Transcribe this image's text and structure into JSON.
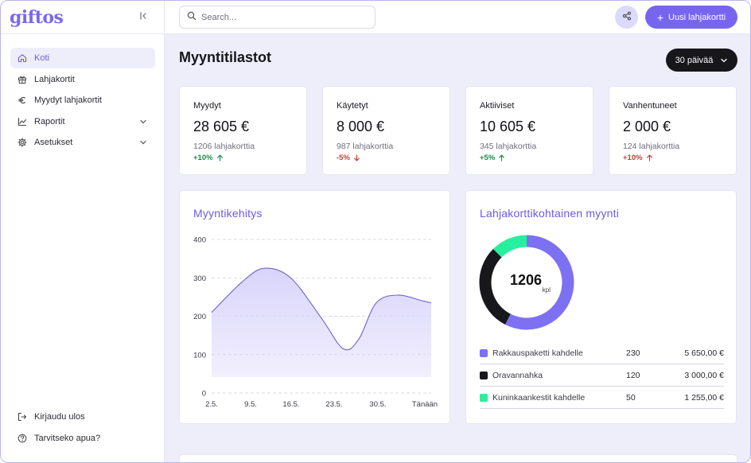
{
  "app": {
    "logo": "giftos"
  },
  "sidebar": {
    "items": [
      {
        "label": "Koti",
        "icon": "home-icon",
        "active": true
      },
      {
        "label": "Lahjakortit",
        "icon": "gift-icon"
      },
      {
        "label": "Myydyt lahjakortit",
        "icon": "euro-icon"
      },
      {
        "label": "Raportit",
        "icon": "chart-icon",
        "expandable": true
      },
      {
        "label": "Asetukset",
        "icon": "gear-icon",
        "expandable": true
      }
    ],
    "bottom": [
      {
        "label": "Kirjaudu ulos",
        "icon": "logout-icon"
      },
      {
        "label": "Tarvitseko apua?",
        "icon": "help-icon"
      }
    ]
  },
  "topbar": {
    "search_placeholder": "Search...",
    "new_button": "Uusi lahjakortti"
  },
  "main": {
    "title": "Myyntitilastot",
    "period": "30 päivää",
    "stats": [
      {
        "label": "Myydyt",
        "value": "28 605 €",
        "sub": "1206 lahjakorttia",
        "change": "+10%",
        "direction": "up"
      },
      {
        "label": "Käytetyt",
        "value": "8 000 €",
        "sub": "987 lahjakorttia",
        "change": "-5%",
        "direction": "down"
      },
      {
        "label": "Aktiiviset",
        "value": "10 605 €",
        "sub": "345 lahjakorttia",
        "change": "+5%",
        "direction": "up"
      },
      {
        "label": "Vanhentuneet",
        "value": "2 000 €",
        "sub": "124 lahjakorttia",
        "change": "+10%",
        "direction": "up-red"
      }
    ],
    "sales_chart_title": "Myyntikehitys",
    "donut_title": "Lahjakorttikohtainen myynti",
    "donut_total": "1206",
    "donut_unit": "kpl",
    "legend": [
      {
        "name": "Rakkauspaketti kahdelle",
        "count": "230",
        "amount": "5 650,00 €",
        "color": "#7d70f2"
      },
      {
        "name": "Oravannahka",
        "count": "120",
        "amount": "3 000,00 €",
        "color": "#17171c"
      },
      {
        "name": "Kuninkaankestit kahdelle",
        "count": "50",
        "amount": "1 255,00 €",
        "color": "#27ef9e"
      }
    ]
  },
  "colors": {
    "accent": "#7765ef",
    "area_fill": "#d9d4fb",
    "line": "#6f62cf"
  },
  "chart_data": [
    {
      "type": "area",
      "title": "Myyntikehitys",
      "categories": [
        "2.5.",
        "9.5.",
        "16.5.",
        "23.5.",
        "30.5.",
        "Tänään"
      ],
      "yticks": [
        0,
        100,
        200,
        300,
        400
      ],
      "ylim": [
        0,
        400
      ],
      "x": [
        0,
        0.14,
        0.24,
        0.36,
        0.5,
        0.6,
        0.67,
        0.75,
        0.85,
        0.96,
        1.0
      ],
      "values": [
        210,
        290,
        325,
        300,
        195,
        115,
        140,
        235,
        255,
        240,
        235
      ],
      "grid": true
    },
    {
      "type": "pie",
      "title": "Lahjakorttikohtainen myynti",
      "categories": [
        "Rakkauspaketti kahdelle",
        "Oravannahka",
        "Kuninkaankestit kahdelle"
      ],
      "values": [
        230,
        120,
        50
      ],
      "colors": [
        "#7d70f2",
        "#17171c",
        "#27ef9e"
      ]
    }
  ]
}
